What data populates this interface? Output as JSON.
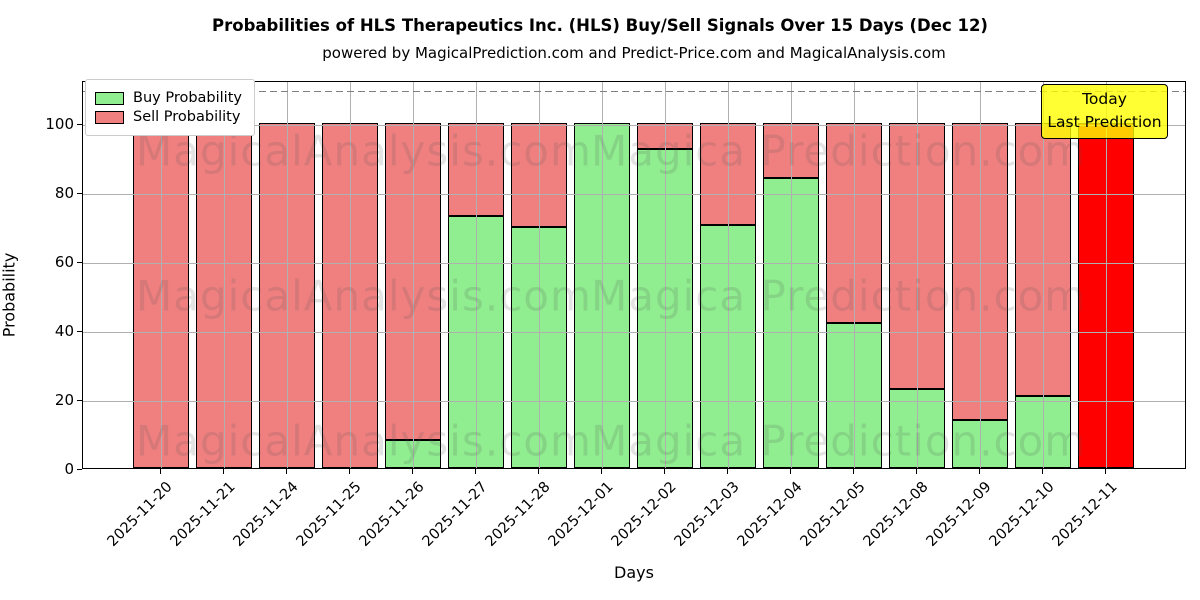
{
  "title": "Probabilities of HLS Therapeutics Inc. (HLS) Buy/Sell Signals Over 15 Days (Dec 12)",
  "subtitle": "powered by MagicalPrediction.com and Predict-Price.com and MagicalAnalysis.com",
  "legend": {
    "buy_label": "Buy Probability",
    "sell_label": "Sell Probability"
  },
  "annotation": {
    "line1": "Today",
    "line2": "Last Prediction"
  },
  "watermarks": {
    "left": "MagicalAnalysis.com",
    "right": "Magica Prediction.com"
  },
  "colors": {
    "buy": "#90ee90",
    "sell": "#f08080",
    "today_bar": "#ff0000",
    "bar_edge": "#000000",
    "grid": "#b0b0b0",
    "dashed_line": "#7f7f7f",
    "annotation_bg": "#ffff00"
  },
  "chart_data": {
    "type": "bar",
    "stacked": true,
    "title": "Probabilities of HLS Therapeutics Inc. (HLS) Buy/Sell Signals Over 15 Days (Dec 12)",
    "xlabel": "Days",
    "ylabel": "Probability",
    "categories": [
      "2025-11-20",
      "2025-11-21",
      "2025-11-24",
      "2025-11-25",
      "2025-11-26",
      "2025-11-27",
      "2025-11-28",
      "2025-12-01",
      "2025-12-02",
      "2025-12-03",
      "2025-12-04",
      "2025-12-05",
      "2025-12-08",
      "2025-12-09",
      "2025-12-10",
      "2025-12-11"
    ],
    "series": [
      {
        "name": "Buy Probability",
        "color": "#90ee90",
        "values": [
          0,
          0,
          0,
          0,
          8,
          73,
          70,
          100,
          92.5,
          70.5,
          84,
          42,
          23,
          14,
          21,
          0
        ]
      },
      {
        "name": "Sell Probability",
        "color": "#f08080",
        "values": [
          100,
          100,
          100,
          100,
          92,
          27,
          30,
          0,
          7.5,
          29.5,
          16,
          58,
          77,
          86,
          79,
          100
        ]
      }
    ],
    "last_bar_override_color": "#ff0000",
    "yticks": [
      0,
      20,
      40,
      60,
      80,
      100
    ],
    "ylim": [
      0,
      112.5
    ],
    "dashed_line_y": 110,
    "grid": true,
    "legend_position": "upper left",
    "annotation_box": [
      "Today",
      "Last Prediction"
    ]
  }
}
